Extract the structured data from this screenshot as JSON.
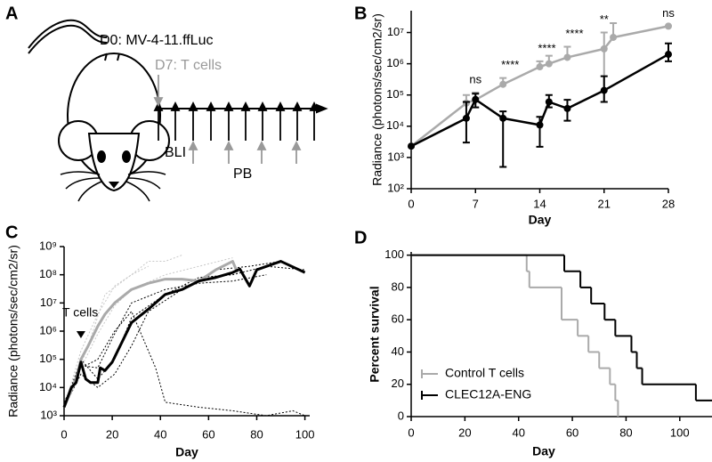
{
  "diagram": {
    "panel_label": "A",
    "injection": "D0: MV-4-11.ffLuc",
    "treatment": "D7: T cells",
    "imaging": "BLI",
    "blood": "PB"
  },
  "chart_data": [
    {
      "panel_label": "B",
      "type": "line",
      "y_label": "Radiance (photons/sec/cm2/sr)",
      "x_label": "Day",
      "yscale": "log",
      "markers": true,
      "xlim": [
        0,
        28
      ],
      "ylim": [
        100,
        50000000
      ],
      "xticks": [
        0,
        7,
        14,
        21,
        28
      ],
      "yticks": [
        {
          "value": 100,
          "label": "10²"
        },
        {
          "value": 1000,
          "label": "10³"
        },
        {
          "value": 10000,
          "label": "10⁴"
        },
        {
          "value": 100000,
          "label": "10⁵"
        },
        {
          "value": 1000000,
          "label": "10⁶"
        },
        {
          "value": 10000000,
          "label": "10⁷"
        }
      ],
      "series": [
        {
          "color": "#aaaaaa",
          "x": [
            0,
            6,
            7,
            10,
            14,
            15,
            17,
            21,
            22,
            28
          ],
          "values": [
            2300,
            55000,
            70000,
            220000,
            800000,
            1000000,
            1600000,
            3000000,
            7000000,
            16000000
          ],
          "upper": [
            null,
            100000,
            120000,
            350000,
            1200000,
            1800000,
            3500000,
            10000000,
            20000000,
            null
          ],
          "lower": [
            null,
            null,
            null,
            null,
            null,
            null,
            null,
            60000,
            null,
            null
          ]
        },
        {
          "color": "#000000",
          "x": [
            0,
            6,
            7,
            10,
            14,
            15,
            17,
            21,
            28
          ],
          "values": [
            2300,
            18000,
            72000,
            18000,
            11000,
            60000,
            37000,
            140000,
            2000000
          ],
          "upper": [
            null,
            60000,
            110000,
            30000,
            20000,
            100000,
            70000,
            400000,
            4500000
          ],
          "lower": [
            null,
            3000,
            40000,
            500,
            2200,
            40000,
            15000,
            60000,
            1200000
          ]
        }
      ],
      "annotations": [
        {
          "x": 7,
          "text": "ns"
        },
        {
          "x": 10,
          "text": "****"
        },
        {
          "x": 14,
          "text": "****"
        },
        {
          "x": 17,
          "text": "****"
        },
        {
          "x": 21,
          "text": "**"
        },
        {
          "x": 28,
          "text": "ns"
        }
      ]
    },
    {
      "panel_label": "C",
      "type": "line",
      "y_label": "Radiance (photons/sec/cm2/sr)",
      "x_label": "Day",
      "yscale": "log",
      "xlim": [
        0,
        102
      ],
      "ylim": [
        1000,
        1000000000
      ],
      "xticks": [
        0,
        20,
        40,
        60,
        80,
        100
      ],
      "yticks": [
        {
          "value": 1000,
          "label": "10³"
        },
        {
          "value": 10000,
          "label": "10⁴"
        },
        {
          "value": 100000,
          "label": "10⁵"
        },
        {
          "value": 1000000,
          "label": "10⁶"
        },
        {
          "value": 10000000,
          "label": "10⁷"
        },
        {
          "value": 100000000,
          "label": "10⁸"
        },
        {
          "value": 1000000000,
          "label": "10⁹"
        }
      ],
      "series": [
        {
          "color": "#c8c8c8",
          "dashed": true,
          "x": [
            0,
            7,
            14,
            21,
            28,
            35,
            42,
            49
          ],
          "values": [
            2000,
            200000,
            4000000,
            40000000,
            100000000,
            300000000,
            300000000,
            500000000
          ]
        },
        {
          "color": "#c8c8c8",
          "dashed": true,
          "x": [
            0,
            7,
            14,
            21,
            28,
            42,
            56,
            70
          ],
          "values": [
            2000,
            50000,
            800000,
            8000000,
            30000000,
            100000000,
            200000000,
            400000000
          ]
        },
        {
          "color": "#c8c8c8",
          "dashed": true,
          "x": [
            0,
            10,
            17,
            28,
            35
          ],
          "values": [
            2000,
            300000,
            20000000,
            100000000,
            200000000
          ]
        },
        {
          "color": "#000000",
          "dashed": true,
          "x": [
            0,
            7,
            14,
            21,
            28,
            35,
            38,
            42,
            56,
            70,
            84,
            95,
            100
          ],
          "values": [
            3000,
            50000,
            100000,
            1000000,
            5000000,
            200000,
            50000,
            3000,
            2000,
            1500,
            1000,
            1500,
            1000
          ]
        },
        {
          "color": "#000000",
          "dashed": true,
          "x": [
            0,
            7,
            14,
            21,
            28,
            42,
            56,
            70,
            84,
            100
          ],
          "values": [
            2000,
            100000,
            20000,
            100000,
            3000000,
            20000000,
            80000000,
            100000000,
            200000000,
            150000000
          ]
        },
        {
          "color": "#000000",
          "dashed": true,
          "x": [
            0,
            7,
            14,
            21,
            28,
            35,
            49,
            63,
            77,
            90
          ],
          "values": [
            2000,
            30000,
            10000,
            30000,
            300000,
            5000000,
            30000000,
            150000000,
            200000000,
            300000000
          ]
        },
        {
          "color": "#000000",
          "dashed": true,
          "x": [
            0,
            7,
            14,
            21,
            28,
            42,
            56,
            70,
            84
          ],
          "values": [
            2500,
            60000,
            50000,
            800000,
            10000000,
            30000000,
            50000000,
            60000000,
            100000000
          ]
        },
        {
          "color": "#aaaaaa",
          "x": [
            0,
            5,
            7,
            10,
            14,
            17,
            21,
            28,
            35,
            42,
            49,
            56,
            63,
            70,
            72
          ],
          "values": [
            2000,
            20000,
            100000,
            300000,
            1500000,
            4000000,
            10000000,
            30000000,
            50000000,
            70000000,
            70000000,
            60000000,
            150000000,
            300000000,
            120000000
          ]
        },
        {
          "color": "#000000",
          "x": [
            0,
            3,
            5,
            7,
            9,
            11,
            14,
            15,
            17,
            20,
            28,
            35,
            42,
            49,
            56,
            63,
            70,
            73,
            77,
            80,
            90,
            100
          ],
          "values": [
            2000,
            10000,
            15000,
            80000,
            20000,
            15000,
            15000,
            50000,
            40000,
            80000,
            2000000,
            6000000,
            20000000,
            30000000,
            60000000,
            80000000,
            120000000,
            160000000,
            40000000,
            150000000,
            300000000,
            120000000
          ]
        }
      ],
      "annotations": [
        {
          "x": 7,
          "text": "T cells"
        }
      ]
    },
    {
      "panel_label": "D",
      "type": "step",
      "y_label": "Percent survival",
      "x_label": "Day",
      "legend": "lower left",
      "xlim": [
        0,
        112
      ],
      "ylim": [
        0,
        102
      ],
      "xticks": [
        0,
        20,
        40,
        60,
        80,
        100
      ],
      "yticks": [
        0,
        20,
        40,
        60,
        80,
        100
      ],
      "series": [
        {
          "name": "Control T cells",
          "color": "#aaaaaa",
          "x": [
            0,
            43,
            44,
            56,
            62,
            66,
            70,
            74,
            76,
            77
          ],
          "values": [
            100,
            90,
            80,
            60,
            50,
            40,
            30,
            20,
            10,
            0
          ],
          "x_end": 77
        },
        {
          "name": "CLEC12A-ENG",
          "color": "#000000",
          "x": [
            0,
            57,
            63,
            67,
            72,
            76,
            82,
            84,
            86,
            106
          ],
          "values": [
            100,
            90,
            80,
            70,
            60,
            50,
            40,
            30,
            20,
            10
          ],
          "x_end": 112
        }
      ]
    }
  ]
}
